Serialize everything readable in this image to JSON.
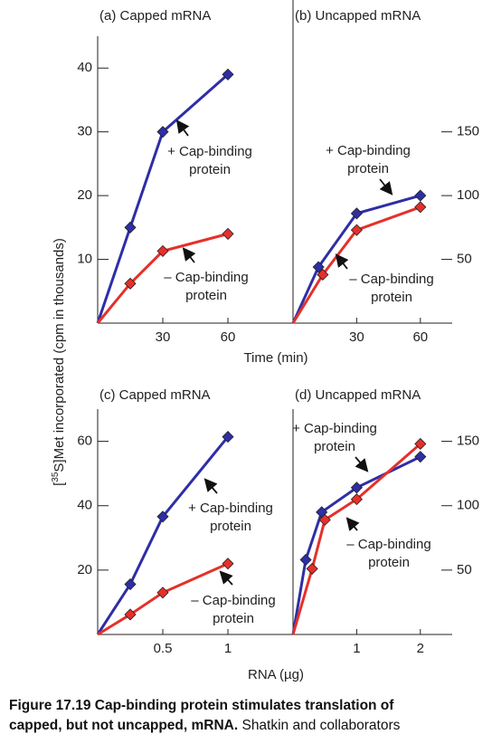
{
  "chart_data": [
    {
      "type": "line",
      "title": "(a) Capped mRNA",
      "yaxis": "left",
      "xlim": [
        0,
        90
      ],
      "xticks": [
        30,
        60
      ],
      "ylim": [
        0,
        45
      ],
      "yticks": [
        10,
        20,
        30,
        40
      ],
      "series": [
        {
          "name": "+ Cap-binding protein",
          "color": "#2e2ea6",
          "x": [
            0,
            15,
            30,
            60
          ],
          "values": [
            0,
            15,
            30,
            39
          ]
        },
        {
          "name": "– Cap-binding protein",
          "color": "#e5302a",
          "x": [
            0,
            15,
            30,
            60
          ],
          "values": [
            0,
            6.2,
            11.3,
            14
          ]
        }
      ],
      "annotations": [
        [
          "+ Cap-binding",
          "protein"
        ],
        [
          "– Cap-binding",
          "protein"
        ]
      ]
    },
    {
      "type": "line",
      "title": "(b) Uncapped mRNA",
      "yaxis": "right",
      "xlim": [
        0,
        75
      ],
      "xticks": [
        30,
        60
      ],
      "ylim": [
        0,
        225
      ],
      "yticks": [
        50,
        100,
        150
      ],
      "series": [
        {
          "name": "+ Cap-binding protein",
          "color": "#2e2ea6",
          "x": [
            0,
            12,
            30,
            60
          ],
          "values": [
            0,
            44,
            86,
            100
          ]
        },
        {
          "name": "– Cap-binding protein",
          "color": "#e5302a",
          "x": [
            0,
            14,
            30,
            60
          ],
          "values": [
            0,
            38,
            73,
            91
          ]
        }
      ],
      "annotations": [
        [
          "+ Cap-binding",
          "protein"
        ],
        [
          "– Cap-binding",
          "protein"
        ]
      ]
    },
    {
      "type": "line",
      "title": "(c) Capped mRNA",
      "yaxis": "left",
      "xlim": [
        0,
        1.5
      ],
      "xticks": [
        0.5,
        1
      ],
      "ylim": [
        0,
        70
      ],
      "yticks": [
        20,
        40,
        60
      ],
      "series": [
        {
          "name": "+ Cap-binding protein",
          "color": "#2e2ea6",
          "x": [
            0,
            0.25,
            0.5,
            1
          ],
          "values": [
            0,
            15.6,
            36.6,
            61.4
          ]
        },
        {
          "name": "– Cap-binding protein",
          "color": "#e5302a",
          "x": [
            0,
            0.25,
            0.5,
            1
          ],
          "values": [
            0,
            6.2,
            13,
            22
          ]
        }
      ],
      "annotations": [
        [
          "+ Cap-binding",
          "protein"
        ],
        [
          "– Cap-binding",
          "protein"
        ]
      ]
    },
    {
      "type": "line",
      "title": "(d) Uncapped mRNA",
      "yaxis": "right",
      "xlim": [
        0,
        2.5
      ],
      "xticks": [
        1,
        2
      ],
      "ylim": [
        0,
        175
      ],
      "yticks": [
        50,
        100,
        150
      ],
      "series": [
        {
          "name": "+ Cap-binding protein",
          "color": "#2e2ea6",
          "x": [
            0,
            0.2,
            0.45,
            1,
            2
          ],
          "values": [
            0,
            58,
            95,
            114,
            138
          ]
        },
        {
          "name": "– Cap-binding protein",
          "color": "#e5302a",
          "x": [
            0,
            0.3,
            0.5,
            1,
            2
          ],
          "values": [
            0,
            51,
            89,
            105,
            148
          ]
        }
      ],
      "annotations": [
        [
          "+ Cap-binding",
          "protein"
        ],
        [
          "– Cap-binding",
          "protein"
        ]
      ]
    }
  ],
  "xlabel_top": "Time (min)",
  "xlabel_bottom": "RNA (µg)",
  "ylabel": {
    "pre": "[",
    "sup": "35",
    "post": "S]Met incorporated (cpm in thousands)"
  },
  "caption": {
    "line1": "Figure 17.19  Cap-binding protein stimulates translation of",
    "line2_bold": "capped, but not uncapped, mRNA.",
    "line2_rest": " Shatkin and collaborators"
  }
}
